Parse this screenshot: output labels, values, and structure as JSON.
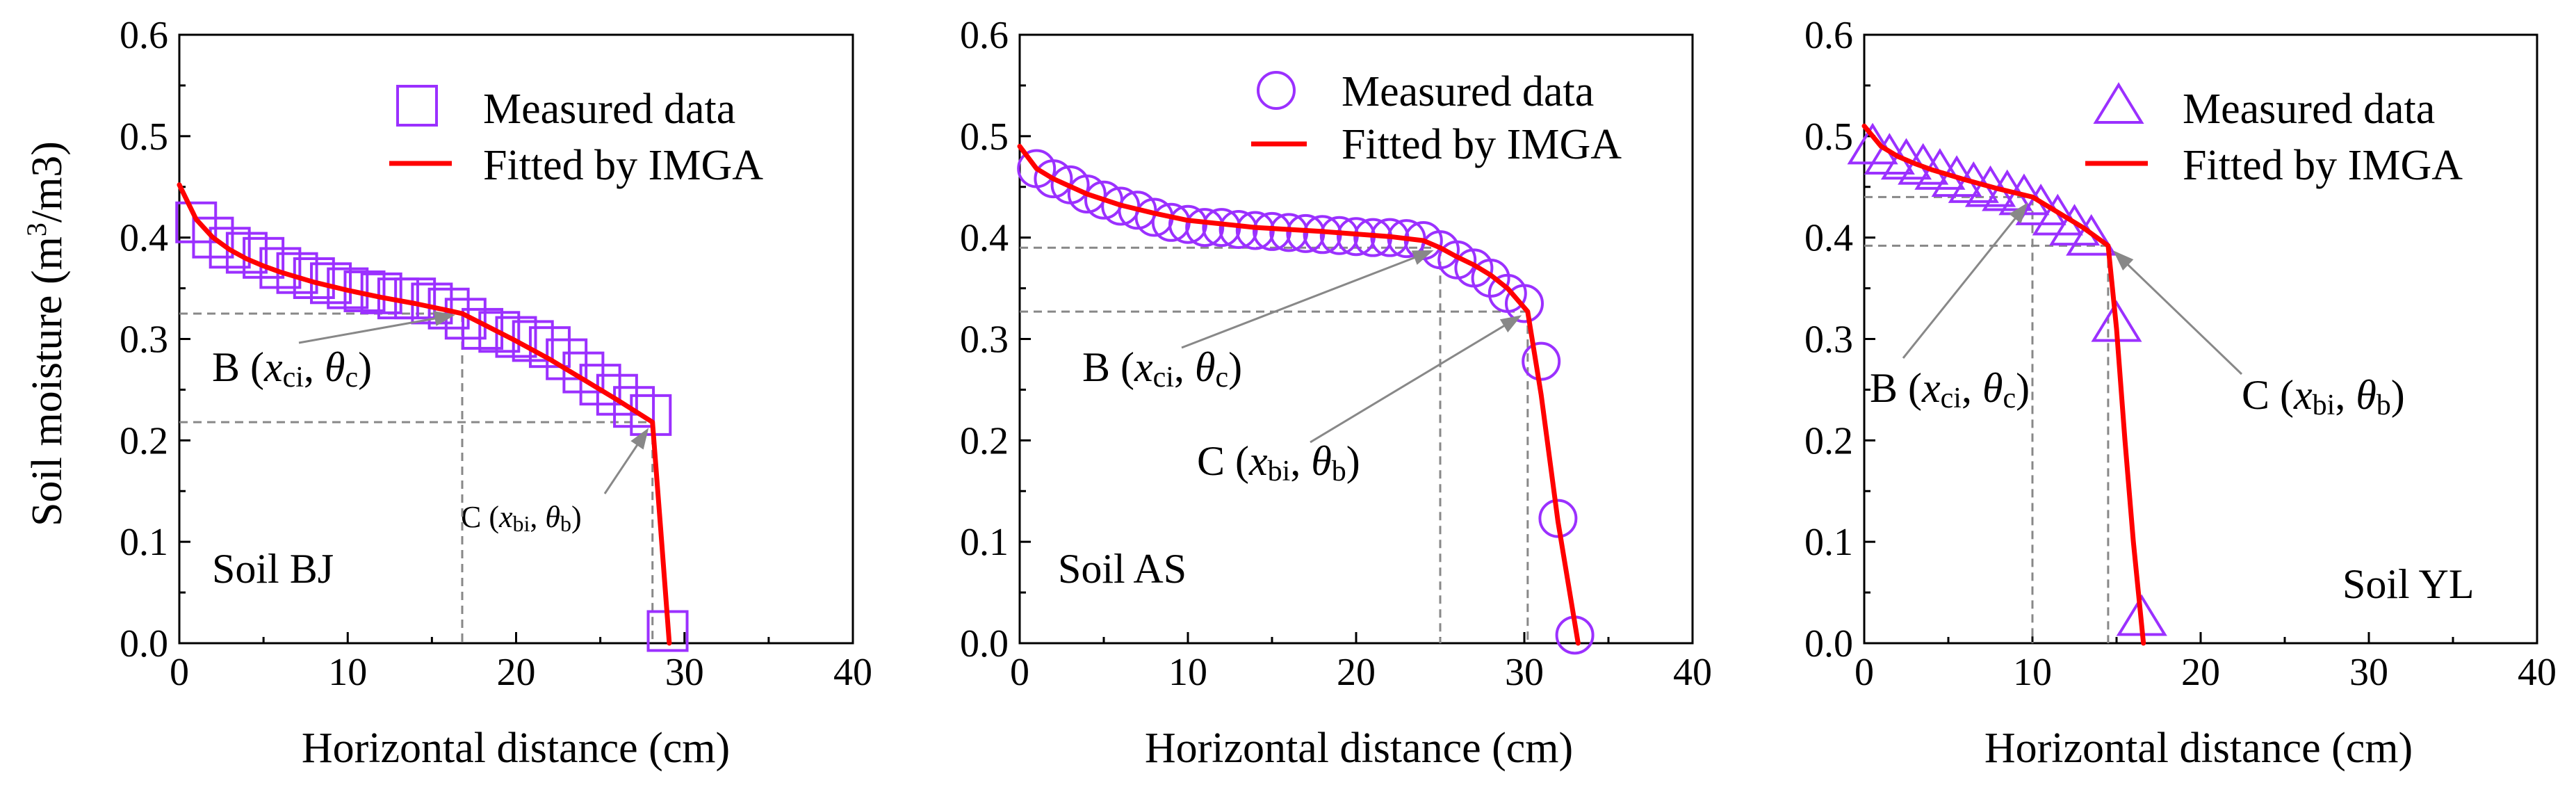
{
  "colors": {
    "marker": "#9b30ff",
    "fit": "#ff0000",
    "guide": "#888888",
    "axis": "#000000"
  },
  "chart_data": [
    {
      "type": "scatter",
      "panel": "left",
      "soil_label": "Soil BJ",
      "marker_icon": "square-marker-icon",
      "xlabel": "Horizontal distance (cm)",
      "ylabel": "Soil moisture (m3/m3)",
      "xlim": [
        0,
        40
      ],
      "ylim": [
        0,
        0.6
      ],
      "xticks": [
        "0",
        "10",
        "20",
        "30",
        "40"
      ],
      "yticks": [
        "0.0",
        "0.1",
        "0.2",
        "0.3",
        "0.4",
        "0.5",
        "0.6"
      ],
      "legend": {
        "measured": "Measured data",
        "fitted": "Fitted by IMGA",
        "position": "top-right"
      },
      "measured": {
        "x": [
          1,
          2,
          3,
          4,
          5,
          6,
          7,
          8,
          9,
          10,
          11,
          12,
          13,
          14,
          15,
          16,
          17,
          18,
          19,
          20,
          21,
          22,
          23,
          24,
          25,
          26,
          27,
          28,
          29
        ],
        "y": [
          0.415,
          0.4,
          0.39,
          0.385,
          0.38,
          0.37,
          0.365,
          0.36,
          0.355,
          0.35,
          0.347,
          0.345,
          0.34,
          0.34,
          0.335,
          0.33,
          0.32,
          0.31,
          0.307,
          0.302,
          0.298,
          0.292,
          0.28,
          0.267,
          0.255,
          0.245,
          0.233,
          0.225,
          0.012
        ]
      },
      "fitted": {
        "x": [
          0,
          1,
          2,
          3,
          4,
          5,
          6,
          8,
          10,
          12,
          14,
          16,
          16.8,
          18,
          20,
          22,
          24,
          26,
          28.1,
          28.6,
          29.1
        ],
        "y": [
          0.452,
          0.418,
          0.4,
          0.388,
          0.379,
          0.372,
          0.366,
          0.356,
          0.348,
          0.341,
          0.335,
          0.328,
          0.325,
          0.315,
          0.298,
          0.28,
          0.26,
          0.24,
          0.218,
          0.11,
          0.0
        ]
      },
      "guides": [
        {
          "x": 16.8,
          "y": 0.325
        },
        {
          "x": 28.1,
          "y": 0.218
        }
      ],
      "annotations": [
        {
          "name": "B",
          "text_prefix": "B (",
          "v1": "x",
          "s1": "ci",
          "v2": "θ",
          "s2": "c"
        },
        {
          "name": "C",
          "text_prefix": "C (",
          "v1": "x",
          "s1": "bi",
          "v2": "θ",
          "s2": "b"
        }
      ]
    },
    {
      "type": "scatter",
      "panel": "middle",
      "soil_label": "Soil AS",
      "marker_icon": "circle-marker-icon",
      "xlabel": "Horizontal distance (cm)",
      "xlim": [
        0,
        40
      ],
      "ylim": [
        0,
        0.6
      ],
      "xticks": [
        "0",
        "10",
        "20",
        "30",
        "40"
      ],
      "yticks": [
        "0.0",
        "0.1",
        "0.2",
        "0.3",
        "0.4",
        "0.5",
        "0.6"
      ],
      "legend": {
        "measured": "Measured data",
        "fitted": "Fitted by IMGA",
        "position": "top-right"
      },
      "measured": {
        "x": [
          1,
          2,
          3,
          4,
          5,
          6,
          7,
          8,
          9,
          10,
          11,
          12,
          13,
          14,
          15,
          16,
          17,
          18,
          19,
          20,
          21,
          22,
          23,
          24,
          25,
          26,
          27,
          28,
          29,
          30,
          31,
          32,
          33
        ],
        "y": [
          0.468,
          0.458,
          0.452,
          0.443,
          0.437,
          0.431,
          0.427,
          0.42,
          0.415,
          0.413,
          0.41,
          0.41,
          0.408,
          0.407,
          0.406,
          0.405,
          0.404,
          0.403,
          0.402,
          0.401,
          0.4,
          0.4,
          0.399,
          0.397,
          0.388,
          0.378,
          0.37,
          0.36,
          0.345,
          0.335,
          0.278,
          0.123,
          0.008
        ]
      },
      "fitted": {
        "x": [
          0,
          1,
          2,
          4,
          6,
          8,
          10,
          14,
          18,
          22,
          24,
          25,
          26,
          27,
          28,
          29,
          30.2,
          31,
          32,
          33.2
        ],
        "y": [
          0.49,
          0.468,
          0.458,
          0.443,
          0.432,
          0.424,
          0.417,
          0.41,
          0.406,
          0.401,
          0.397,
          0.39,
          0.381,
          0.373,
          0.363,
          0.35,
          0.327,
          0.245,
          0.12,
          0.0
        ]
      },
      "guides": [
        {
          "x": 25,
          "y": 0.39
        },
        {
          "x": 30.2,
          "y": 0.327
        }
      ],
      "annotations": [
        {
          "name": "B",
          "text_prefix": "B (",
          "v1": "x",
          "s1": "ci",
          "v2": "θ",
          "s2": "c"
        },
        {
          "name": "C",
          "text_prefix": "C (",
          "v1": "x",
          "s1": "bi",
          "v2": "θ",
          "s2": "b"
        }
      ]
    },
    {
      "type": "scatter",
      "panel": "right",
      "soil_label": "Soil YL",
      "marker_icon": "triangle-marker-icon",
      "xlabel": "Horizontal distance (cm)",
      "xlim": [
        0,
        40
      ],
      "ylim": [
        0,
        0.6
      ],
      "xticks": [
        "0",
        "10",
        "20",
        "30",
        "40"
      ],
      "yticks": [
        "0.0",
        "0.1",
        "0.2",
        "0.3",
        "0.4",
        "0.5",
        "0.6"
      ],
      "legend": {
        "measured": "Measured data",
        "fitted": "Fitted by IMGA",
        "position": "top-right"
      },
      "measured": {
        "x": [
          0.5,
          1.5,
          2.5,
          3.5,
          4.5,
          5.5,
          6.5,
          7.5,
          8.5,
          9.5,
          10.5,
          11.5,
          12.5,
          13.5,
          15,
          16.5
        ],
        "y": [
          0.49,
          0.48,
          0.475,
          0.47,
          0.465,
          0.458,
          0.452,
          0.448,
          0.444,
          0.44,
          0.43,
          0.42,
          0.41,
          0.4,
          0.315,
          0.025
        ]
      },
      "fitted": {
        "x": [
          0,
          1,
          2,
          3,
          4,
          6,
          8,
          10,
          11,
          12,
          13,
          14.5,
          15,
          15.5,
          16,
          16.6
        ],
        "y": [
          0.51,
          0.49,
          0.48,
          0.473,
          0.467,
          0.457,
          0.448,
          0.44,
          0.43,
          0.42,
          0.41,
          0.392,
          0.31,
          0.2,
          0.1,
          0.0
        ]
      },
      "guides": [
        {
          "x": 10,
          "y": 0.44
        },
        {
          "x": 14.5,
          "y": 0.392
        }
      ],
      "annotations": [
        {
          "name": "B",
          "text_prefix": "B (",
          "v1": "x",
          "s1": "ci",
          "v2": "θ",
          "s2": "c"
        },
        {
          "name": "C",
          "text_prefix": "C (",
          "v1": "x",
          "s1": "bi",
          "v2": "θ",
          "s2": "b"
        }
      ]
    }
  ]
}
